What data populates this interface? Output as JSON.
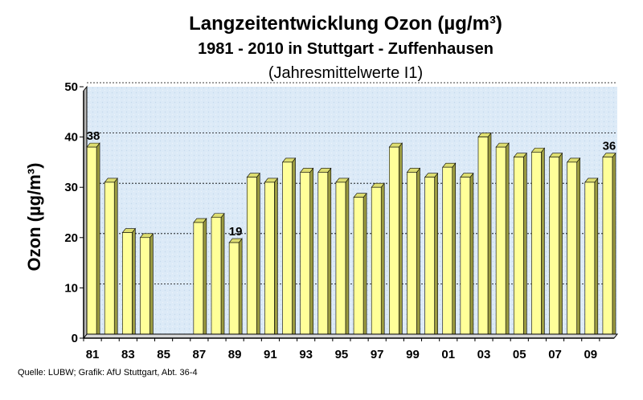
{
  "title": "Langzeitentwicklung Ozon (µg/m³)",
  "subtitle": "1981 - 2010 in Stuttgart - Zuffenhausen",
  "subtitle2": "(Jahresmittelwerte I1)",
  "source": "Quelle: LUBW; Grafik: AfU Stuttgart, Abt. 36-4",
  "colors": {
    "bar_front": "#ffff99",
    "bar_side": "#9a9a40",
    "bar_top": "#dddd70",
    "plot_bg": "#dceaf7"
  },
  "chart_data": {
    "type": "bar",
    "title": "Langzeitentwicklung Ozon (µg/m³)",
    "ylabel": "Ozon (µg/m³)",
    "xlabel": "",
    "ylim": [
      0,
      50
    ],
    "yticks": [
      "0",
      "10",
      "20",
      "30",
      "40",
      "50"
    ],
    "grid": true,
    "categories": [
      "81",
      "82",
      "83",
      "84",
      "85",
      "86",
      "87",
      "88",
      "89",
      "90",
      "91",
      "92",
      "93",
      "94",
      "95",
      "96",
      "97",
      "98",
      "99",
      "00",
      "01",
      "02",
      "03",
      "04",
      "05",
      "06",
      "07",
      "08",
      "09",
      "10"
    ],
    "xtick_labels": [
      "81",
      "",
      "83",
      "",
      "85",
      "",
      "87",
      "",
      "89",
      "",
      "91",
      "",
      "93",
      "",
      "95",
      "",
      "97",
      "",
      "99",
      "",
      "01",
      "",
      "03",
      "",
      "05",
      "",
      "07",
      "",
      "09",
      ""
    ],
    "values": [
      38,
      31,
      21,
      20,
      null,
      null,
      23,
      24,
      19,
      32,
      31,
      35,
      33,
      33,
      31,
      28,
      30,
      38,
      33,
      32,
      34,
      32,
      40,
      38,
      36,
      37,
      36,
      35,
      31,
      36
    ],
    "data_labels": [
      "38",
      "",
      "",
      "",
      "",
      "",
      "",
      "",
      "19",
      "",
      "",
      "",
      "",
      "",
      "",
      "",
      "",
      "",
      "",
      "",
      "",
      "",
      "",
      "",
      "",
      "",
      "",
      "",
      "",
      "36"
    ]
  }
}
